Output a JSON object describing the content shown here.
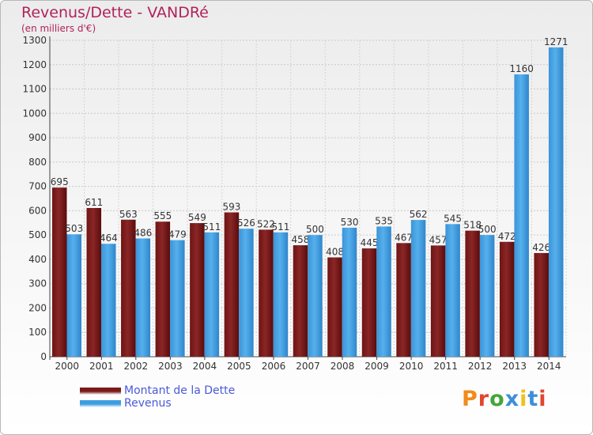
{
  "header": {
    "title": "Revenus/Dette - VANDRé",
    "subtitle": "(en milliers d'€)"
  },
  "chart_data": {
    "type": "bar",
    "categories": [
      "2000",
      "2001",
      "2002",
      "2003",
      "2004",
      "2005",
      "2006",
      "2007",
      "2008",
      "2009",
      "2010",
      "2011",
      "2012",
      "2013",
      "2014"
    ],
    "series": [
      {
        "name": "Montant de la Dette",
        "color": "#7b1a1a",
        "values": [
          695,
          611,
          563,
          555,
          549,
          593,
          522,
          458,
          408,
          445,
          467,
          457,
          518,
          472,
          426
        ]
      },
      {
        "name": "Revenus",
        "color": "#3d9de0",
        "values": [
          503,
          464,
          486,
          479,
          511,
          526,
          511,
          500,
          530,
          535,
          562,
          545,
          500,
          1160,
          1271
        ]
      }
    ],
    "ylim": [
      0,
      1300
    ],
    "yticks": [
      0,
      100,
      200,
      300,
      400,
      500,
      600,
      700,
      800,
      900,
      1000,
      1100,
      1200,
      1300
    ],
    "grid": true,
    "legend_position": "bottom-left"
  },
  "legend": {
    "items": [
      {
        "label": "Montant de la Dette",
        "color": "#7b1a1a"
      },
      {
        "label": "Revenus",
        "color": "#3d9de0"
      }
    ]
  },
  "logo": {
    "letters": [
      "P",
      "r",
      "o",
      "x",
      "i",
      "t",
      "i"
    ],
    "colors": [
      "#f28a1a",
      "#e2462b",
      "#45a53a",
      "#3e8fd8",
      "#f2c01c",
      "#3e8fd8",
      "#e2462b"
    ]
  }
}
